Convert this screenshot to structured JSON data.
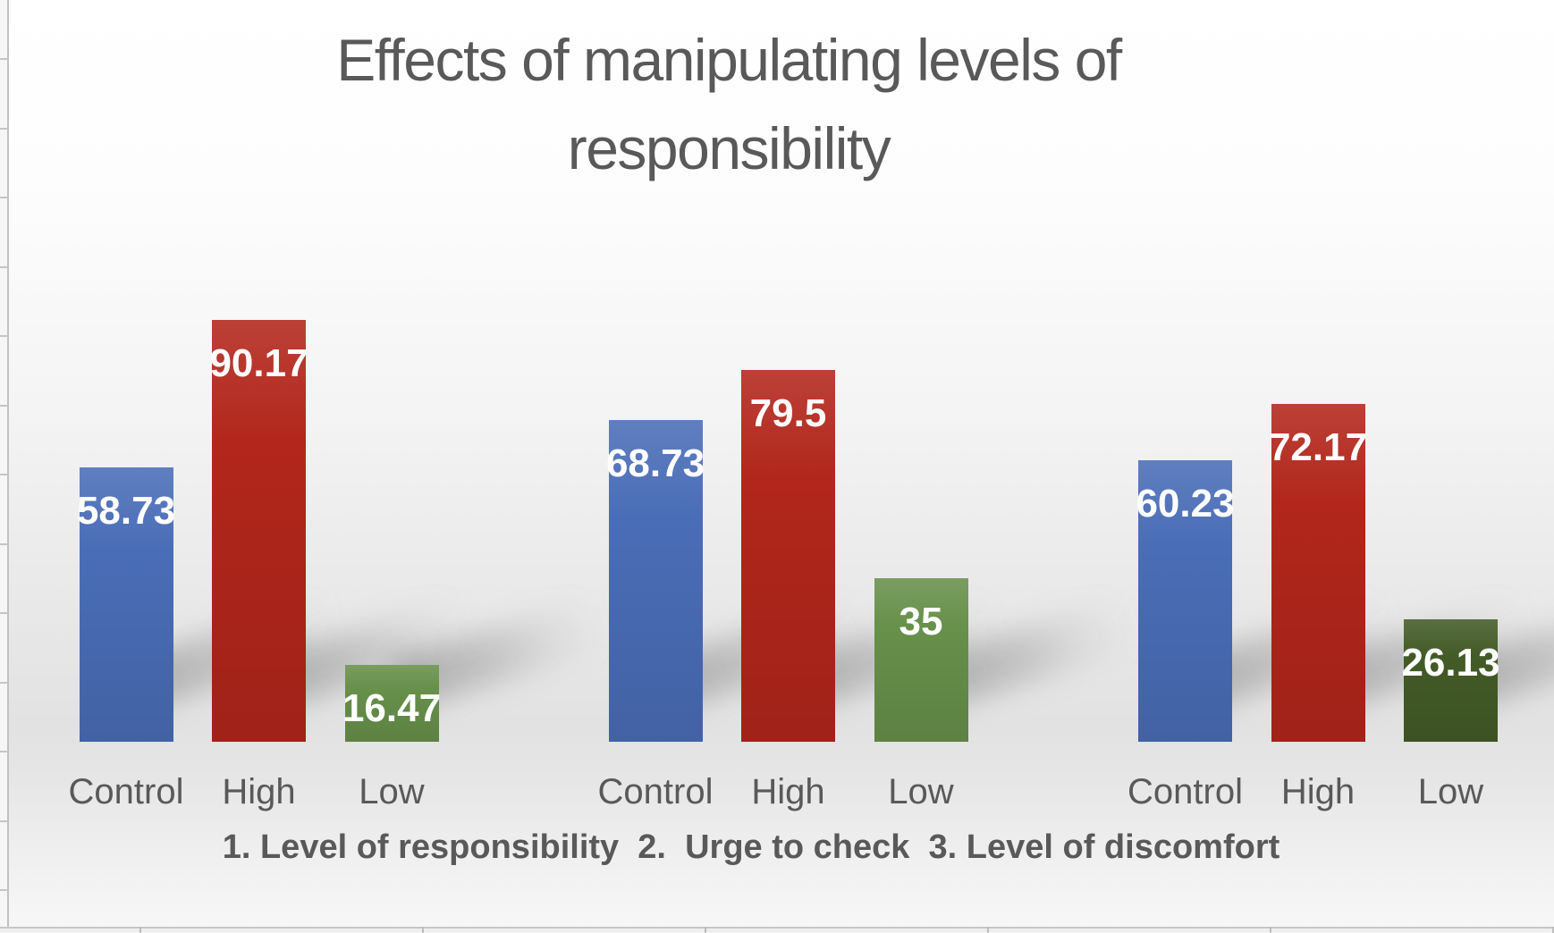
{
  "chart_data": {
    "type": "bar",
    "title": "Effects of manipulating levels of responsibility",
    "caption": "1. Level of responsibility  2.  Urge to check  3. Level of discomfort",
    "categories": [
      "Control",
      "High",
      "Low"
    ],
    "legend_position": "none",
    "y_axis_visible": false,
    "grid": false,
    "text_color": "#595959",
    "value_label_color": "#ffffff",
    "groups": [
      {
        "group_label": "1. Level of responsibility",
        "bars": [
          {
            "category": "Control",
            "value": 58.73,
            "label": "58.73",
            "color": "#4a6db7"
          },
          {
            "category": "High",
            "value": 90.17,
            "label": "90.17",
            "color": "#b2261b"
          },
          {
            "category": "Low",
            "value": 16.47,
            "label": "16.47",
            "color": "#67904a"
          }
        ]
      },
      {
        "group_label": "2. Urge to check",
        "bars": [
          {
            "category": "Control",
            "value": 68.73,
            "label": "68.73",
            "color": "#4a6db7"
          },
          {
            "category": "High",
            "value": 79.5,
            "label": "79.5",
            "color": "#b2261b"
          },
          {
            "category": "Low",
            "value": 35,
            "label": "35",
            "color": "#67904a"
          }
        ]
      },
      {
        "group_label": "3. Level of discomfort",
        "bars": [
          {
            "category": "Control",
            "value": 60.23,
            "label": "60.23",
            "color": "#4a6db7"
          },
          {
            "category": "High",
            "value": 72.17,
            "label": "72.17",
            "color": "#b2261b"
          },
          {
            "category": "Low",
            "value": 26.13,
            "label": "26.13",
            "color": "#435b27"
          }
        ]
      }
    ]
  }
}
